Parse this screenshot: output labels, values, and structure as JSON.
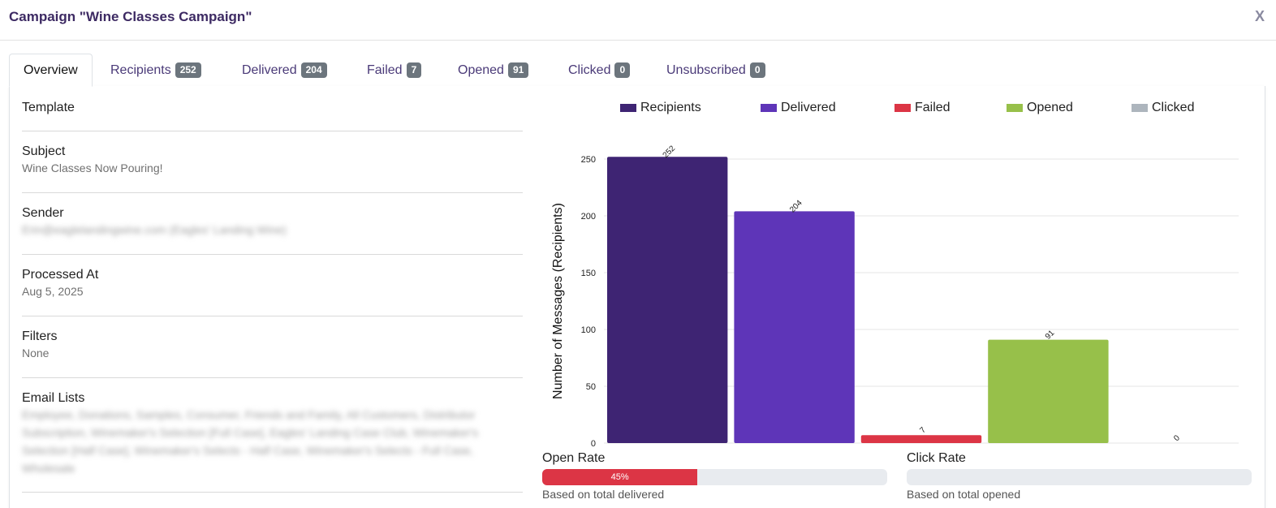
{
  "modal": {
    "title": "Campaign \"Wine Classes Campaign\"",
    "close": "X"
  },
  "tabs": [
    {
      "label": "Overview",
      "badge": null
    },
    {
      "label": "Recipients",
      "badge": "252"
    },
    {
      "label": "Delivered",
      "badge": "204"
    },
    {
      "label": "Failed",
      "badge": "7"
    },
    {
      "label": "Opened",
      "badge": "91"
    },
    {
      "label": "Clicked",
      "badge": "0"
    },
    {
      "label": "Unsubscribed",
      "badge": "0"
    }
  ],
  "details": {
    "template": {
      "label": "Template"
    },
    "subject": {
      "label": "Subject",
      "value": "Wine Classes Now Pouring!"
    },
    "sender": {
      "label": "Sender",
      "value": "Erin@eaglelandingwine.com (Eagles' Landing Wine)"
    },
    "processed": {
      "label": "Processed At",
      "value": "Aug 5, 2025"
    },
    "filters": {
      "label": "Filters",
      "value": "None"
    },
    "email_lists": {
      "label": "Email Lists",
      "value": "Employee, Donations, Samples, Consumer, Friends and Family, All Customers, Distributor Subscription, Winemaker's Selection [Full Case], Eagles' Landing Case Club, Winemaker's Selection [Half Case], Winemaker's Selects - Half Case, Winemaker's Selects - Full Case, Wholesale"
    }
  },
  "colors": {
    "recipients": "#3e2473",
    "delivered": "#5e35b8",
    "failed": "#dc3545",
    "opened": "#97c04a",
    "clicked": "#adb5bd"
  },
  "chart_data": {
    "type": "bar",
    "categories": [
      "Recipients",
      "Delivered",
      "Failed",
      "Opened",
      "Clicked"
    ],
    "values": [
      252,
      204,
      7,
      91,
      0
    ],
    "ylabel": "Number of Messages (Recipients)",
    "xlabel": "",
    "ylim": [
      0,
      250
    ],
    "yticks": [
      0,
      50,
      100,
      150,
      200,
      250
    ],
    "grid": true,
    "legend": [
      "Recipients",
      "Delivered",
      "Failed",
      "Opened",
      "Clicked"
    ],
    "legend_position": "top",
    "data_labels": [
      "252",
      "204",
      "7",
      "91",
      "0"
    ]
  },
  "rates": {
    "open": {
      "label": "Open Rate",
      "percent": 45,
      "text": "45%",
      "note": "Based on total delivered"
    },
    "click": {
      "label": "Click Rate",
      "percent": 0,
      "text": "",
      "note": "Based on total opened"
    }
  }
}
